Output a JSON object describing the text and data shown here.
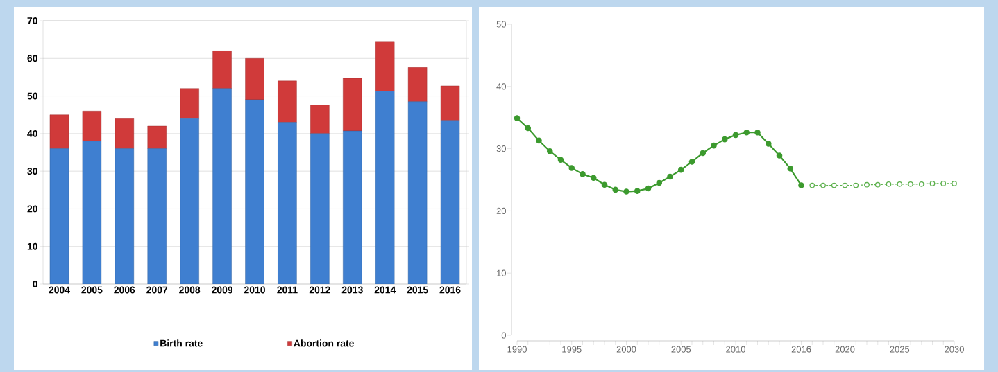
{
  "chart_data": [
    {
      "type": "bar",
      "stacked": true,
      "categories": [
        "2004",
        "2005",
        "2006",
        "2007",
        "2008",
        "2009",
        "2010",
        "2011",
        "2012",
        "2013",
        "2014",
        "2015",
        "2016"
      ],
      "series": [
        {
          "name": "Birth rate",
          "color": "#3f7fd0",
          "values": [
            36,
            38,
            36,
            36,
            44,
            52,
            49,
            43,
            40,
            40.7,
            51.3,
            48.5,
            43.5
          ]
        },
        {
          "name": "Abortion rate",
          "color": "#d03a3a",
          "values": [
            9,
            8,
            8,
            6,
            8,
            10,
            11,
            11,
            7.6,
            14,
            13.2,
            9.1,
            9.2
          ]
        }
      ],
      "ylim": [
        0,
        70
      ],
      "yticks": [
        0,
        10,
        20,
        30,
        40,
        50,
        60,
        70
      ],
      "grid": "y",
      "legend": "bottom"
    },
    {
      "type": "line",
      "x": [
        1990,
        1991,
        1992,
        1993,
        1994,
        1995,
        1996,
        1997,
        1998,
        1999,
        2000,
        2001,
        2002,
        2003,
        2004,
        2005,
        2006,
        2007,
        2008,
        2009,
        2010,
        2011,
        2012,
        2013,
        2014,
        2015,
        2016
      ],
      "series": [
        {
          "color": "#3c9a2e",
          "marker": "circle",
          "line_style": "solid",
          "values": [
            34.9,
            33.3,
            31.3,
            29.6,
            28.2,
            26.9,
            25.9,
            25.3,
            24.2,
            23.4,
            23.1,
            23.2,
            23.6,
            24.5,
            25.5,
            26.6,
            27.9,
            29.3,
            30.5,
            31.5,
            32.2,
            32.6,
            32.6,
            30.8,
            28.9,
            26.8,
            24.1
          ]
        },
        {
          "color": "#5cb04c",
          "marker": "circle",
          "line_style": "dotted",
          "x": [
            2017,
            2018,
            2019,
            2020,
            2021,
            2022,
            2023,
            2024,
            2025,
            2026,
            2027,
            2028,
            2029,
            2030
          ],
          "values": [
            24.1,
            24.1,
            24.1,
            24.1,
            24.1,
            24.2,
            24.2,
            24.3,
            24.3,
            24.3,
            24.3,
            24.4,
            24.4,
            24.4
          ]
        }
      ],
      "xlim": [
        1990,
        2030
      ],
      "ylim": [
        0,
        50
      ],
      "yticks": [
        0,
        10,
        20,
        30,
        40,
        50
      ],
      "xticks": [
        1990,
        {
          "value": 1991,
          "label": null
        },
        {
          "value": 1992,
          "label": null
        },
        {
          "value": 1993,
          "label": null
        },
        {
          "value": 1994,
          "label": null
        },
        1995,
        {
          "value": 1996,
          "label": null
        },
        {
          "value": 1997,
          "label": null
        },
        {
          "value": 1998,
          "label": null
        },
        {
          "value": 1999,
          "label": null
        },
        2000,
        {
          "value": 2001,
          "label": null
        },
        {
          "value": 2002,
          "label": null
        },
        {
          "value": 2003,
          "label": null
        },
        {
          "value": 2004,
          "label": null
        },
        2005,
        {
          "value": 2006,
          "label": null
        },
        {
          "value": 2007,
          "label": null
        },
        {
          "value": 2008,
          "label": null
        },
        {
          "value": 2009,
          "label": null
        },
        2010,
        {
          "value": 2011,
          "label": null
        },
        {
          "value": 2012,
          "label": null
        },
        {
          "value": 2013,
          "label": null
        },
        {
          "value": 2014,
          "label": null
        },
        {
          "value": 2015,
          "label": null
        },
        2016,
        {
          "value": 2017,
          "label": null
        },
        {
          "value": 2018,
          "label": null
        },
        {
          "value": 2019,
          "label": null
        },
        2020,
        {
          "value": 2021,
          "label": null
        },
        {
          "value": 2022,
          "label": null
        },
        {
          "value": 2023,
          "label": null
        },
        {
          "value": 2024,
          "label": null
        },
        2025,
        {
          "value": 2026,
          "label": null
        },
        {
          "value": 2027,
          "label": null
        },
        {
          "value": 2028,
          "label": null
        },
        {
          "value": 2029,
          "label": null
        },
        2030
      ]
    }
  ]
}
